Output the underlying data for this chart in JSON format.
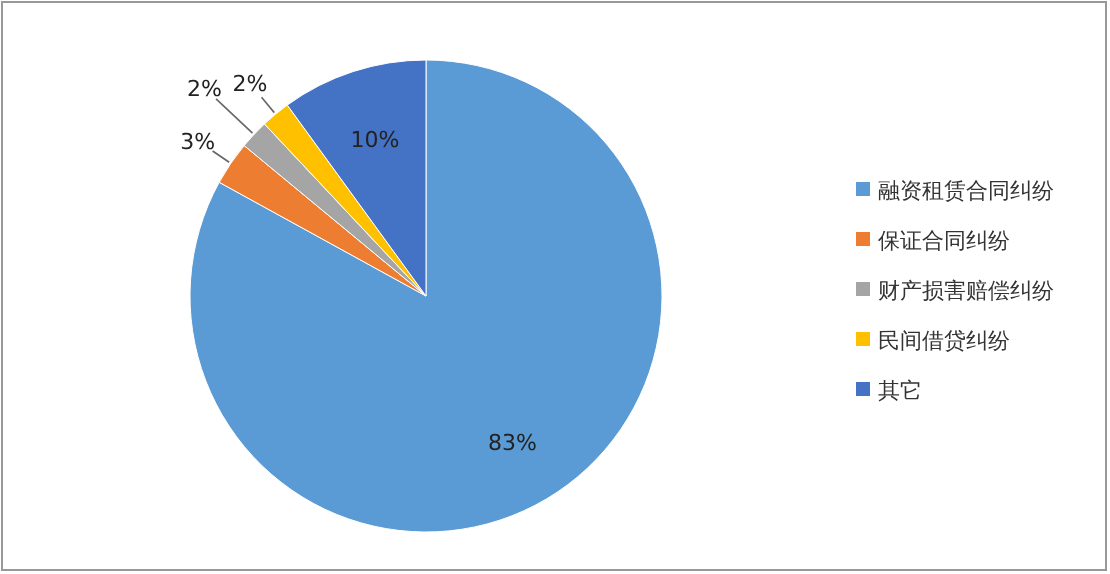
{
  "chart_data": {
    "type": "pie",
    "categories": [
      "融资租赁合同纠纷",
      "保证合同纠纷",
      "财产损害赔偿纠纷",
      "民间借贷纠纷",
      "其它"
    ],
    "values": [
      83,
      3,
      2,
      2,
      10
    ],
    "colors": [
      "#5b9bd5",
      "#ed7d31",
      "#a5a5a5",
      "#ffc000",
      "#4472c4"
    ],
    "value_labels": [
      "83%",
      "3%",
      "2%",
      "2%",
      "10%"
    ],
    "legend": "right"
  }
}
